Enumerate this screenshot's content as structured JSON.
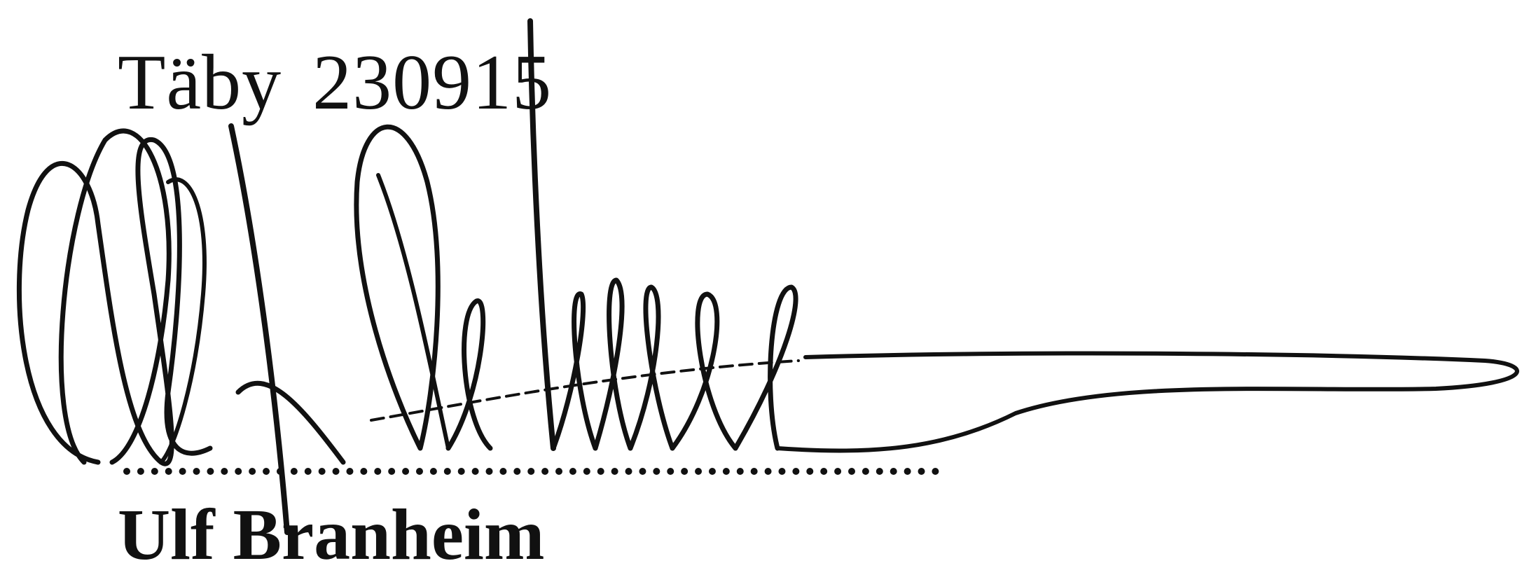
{
  "document": {
    "place": "Täby",
    "date": "230915",
    "signer_name": "Ulf Branheim"
  },
  "colors": {
    "ink": "#111111",
    "paper": "#ffffff"
  }
}
